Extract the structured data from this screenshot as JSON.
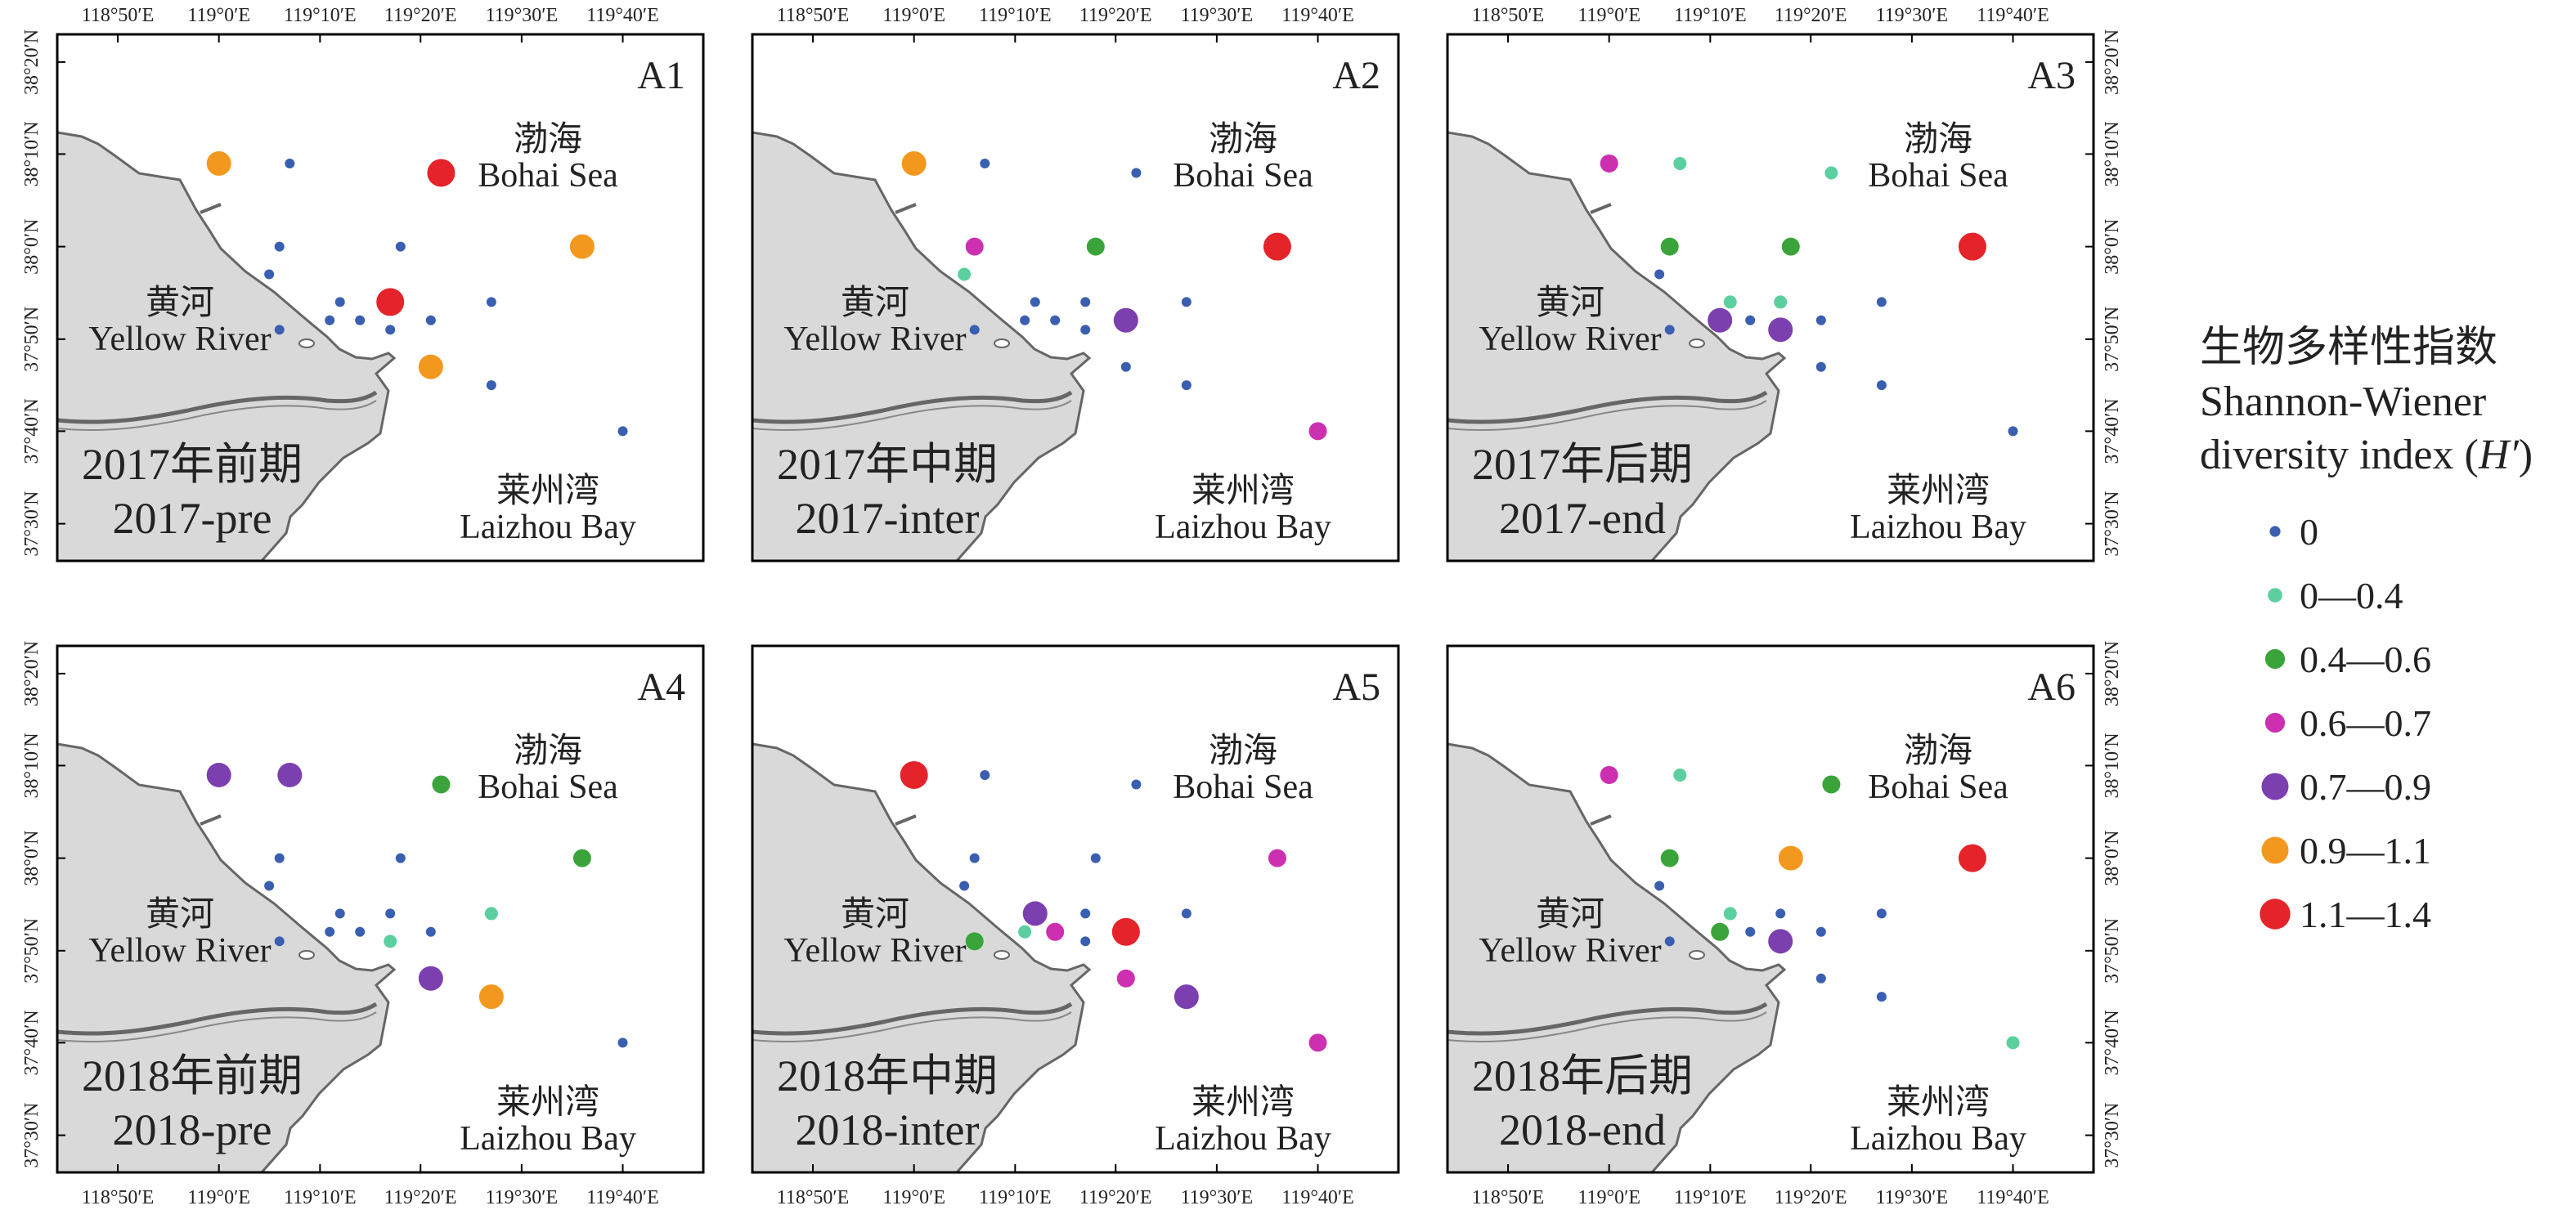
{
  "longitude_ticks": [
    "118°50′E",
    "119°0′E",
    "119°10′E",
    "119°20′E",
    "119°30′E",
    "119°40′E"
  ],
  "latitude_ticks": [
    "38°20′N",
    "38°10′N",
    "38°0′N",
    "37°50′N",
    "37°40′N",
    "37°30′N"
  ],
  "place_labels": {
    "bohai_cn": "渤海",
    "bohai_en": "Bohai Sea",
    "river_cn": "黄河",
    "river_en": "Yellow River",
    "laizhou_cn": "莱州湾",
    "laizhou_en": "Laizhou Bay"
  },
  "legend": {
    "title_cn": "生物多样性指数",
    "title_en_line1": "Shannon-Wiener",
    "title_en_line2_prefix": "diversity index (",
    "title_en_symbol": "H′",
    "title_en_suffix": ")",
    "classes": [
      {
        "label": "0",
        "color": "#3a5fb0",
        "size": "xs"
      },
      {
        "label": "0—0.4",
        "color": "#5ccfa0",
        "size": "s"
      },
      {
        "label": "0.4—0.6",
        "color": "#3aa43a",
        "size": "m"
      },
      {
        "label": "0.6—0.7",
        "color": "#cc2fb0",
        "size": "m"
      },
      {
        "label": "0.7—0.9",
        "color": "#7b3fb0",
        "size": "l"
      },
      {
        "label": "0.9—1.1",
        "color": "#f3981e",
        "size": "l"
      },
      {
        "label": "1.1—1.4",
        "color": "#e5232a",
        "size": "xl"
      }
    ]
  },
  "map_style": {
    "land_color": "#d9d9d9",
    "coast_color": "#666666",
    "frame_color": "#000000",
    "sea_color": "#ffffff"
  },
  "stations": [
    {
      "id": "S1",
      "lon": 119.0,
      "lat": 38.15
    },
    {
      "id": "S2",
      "lon": 119.117,
      "lat": 38.15
    },
    {
      "id": "S3",
      "lon": 119.367,
      "lat": 38.133
    },
    {
      "id": "S4",
      "lon": 119.1,
      "lat": 38.0
    },
    {
      "id": "S5",
      "lon": 119.3,
      "lat": 38.0
    },
    {
      "id": "S6",
      "lon": 119.6,
      "lat": 38.0
    },
    {
      "id": "S7",
      "lon": 119.083,
      "lat": 37.95
    },
    {
      "id": "S8",
      "lon": 119.2,
      "lat": 37.9
    },
    {
      "id": "S9",
      "lon": 119.283,
      "lat": 37.9
    },
    {
      "id": "S10",
      "lon": 119.45,
      "lat": 37.9
    },
    {
      "id": "S11",
      "lon": 119.1,
      "lat": 37.85
    },
    {
      "id": "S12",
      "lon": 119.183,
      "lat": 37.867
    },
    {
      "id": "S13",
      "lon": 119.233,
      "lat": 37.867
    },
    {
      "id": "S14",
      "lon": 119.283,
      "lat": 37.85
    },
    {
      "id": "S15",
      "lon": 119.35,
      "lat": 37.867
    },
    {
      "id": "S16",
      "lon": 119.35,
      "lat": 37.783
    },
    {
      "id": "S17",
      "lon": 119.45,
      "lat": 37.75
    },
    {
      "id": "S18",
      "lon": 119.667,
      "lat": 37.667
    }
  ],
  "panels": [
    {
      "id": "A1",
      "period_cn": "2017年前期",
      "period_en": "2017-pre",
      "classes": [
        5,
        0,
        6,
        0,
        0,
        5,
        0,
        0,
        6,
        0,
        0,
        0,
        0,
        0,
        0,
        5,
        0,
        0
      ]
    },
    {
      "id": "A2",
      "period_cn": "2017年中期",
      "period_en": "2017-inter",
      "classes": [
        5,
        0,
        0,
        3,
        2,
        6,
        1,
        0,
        0,
        0,
        0,
        0,
        0,
        0,
        4,
        0,
        0,
        3
      ]
    },
    {
      "id": "A3",
      "period_cn": "2017年后期",
      "period_en": "2017-end",
      "classes": [
        3,
        1,
        1,
        2,
        2,
        6,
        0,
        1,
        1,
        0,
        0,
        4,
        0,
        4,
        0,
        0,
        0,
        0
      ]
    },
    {
      "id": "A4",
      "period_cn": "2018年前期",
      "period_en": "2018-pre",
      "classes": [
        4,
        4,
        2,
        0,
        0,
        2,
        0,
        0,
        0,
        1,
        0,
        0,
        0,
        1,
        0,
        4,
        5,
        0
      ]
    },
    {
      "id": "A5",
      "period_cn": "2018年中期",
      "period_en": "2018-inter",
      "classes": [
        6,
        0,
        0,
        0,
        0,
        3,
        0,
        4,
        0,
        0,
        2,
        1,
        3,
        0,
        6,
        3,
        4,
        3
      ]
    },
    {
      "id": "A6",
      "period_cn": "2018年后期",
      "period_en": "2018-end",
      "classes": [
        3,
        1,
        2,
        2,
        5,
        6,
        0,
        1,
        0,
        0,
        0,
        2,
        0,
        4,
        0,
        0,
        0,
        1
      ]
    }
  ]
}
